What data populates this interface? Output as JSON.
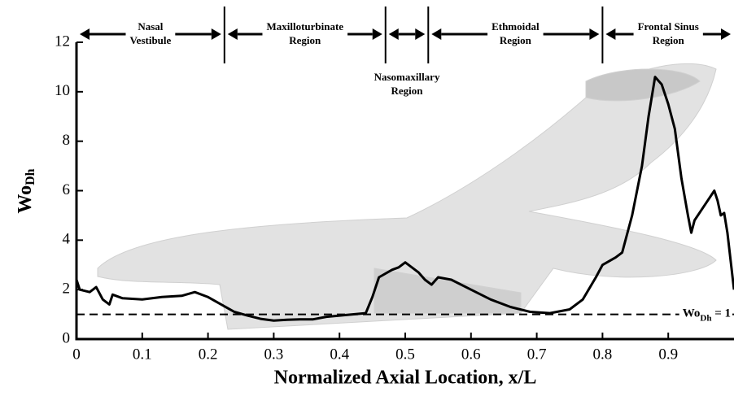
{
  "chart_data": {
    "type": "line",
    "x_label": "Normalized Axial Location, x/L",
    "y_label": [
      "Wo",
      "Dh"
    ],
    "xlim": [
      0,
      1
    ],
    "ylim": [
      0,
      12
    ],
    "xticks": [
      0,
      0.1,
      0.2,
      0.3,
      0.4,
      0.5,
      0.6,
      0.7,
      0.8,
      0.9
    ],
    "yticks": [
      0,
      2,
      4,
      6,
      8,
      10,
      12
    ],
    "color": "#000000",
    "x": [
      0,
      0.005,
      0.02,
      0.03,
      0.04,
      0.05,
      0.055,
      0.07,
      0.1,
      0.13,
      0.16,
      0.18,
      0.2,
      0.22,
      0.24,
      0.26,
      0.28,
      0.3,
      0.32,
      0.34,
      0.36,
      0.38,
      0.4,
      0.42,
      0.44,
      0.45,
      0.46,
      0.48,
      0.49,
      0.5,
      0.51,
      0.52,
      0.53,
      0.54,
      0.55,
      0.57,
      0.6,
      0.63,
      0.66,
      0.69,
      0.72,
      0.75,
      0.77,
      0.79,
      0.8,
      0.82,
      0.83,
      0.845,
      0.86,
      0.87,
      0.88,
      0.89,
      0.9,
      0.91,
      0.92,
      0.93,
      0.935,
      0.94,
      0.95,
      0.96,
      0.97,
      0.975,
      0.98,
      0.985,
      0.99,
      1.0
    ],
    "values": [
      2.4,
      2.0,
      1.9,
      2.1,
      1.6,
      1.4,
      1.8,
      1.65,
      1.6,
      1.7,
      1.75,
      1.9,
      1.7,
      1.4,
      1.1,
      0.95,
      0.82,
      0.75,
      0.78,
      0.8,
      0.8,
      0.9,
      0.95,
      1.0,
      1.05,
      1.7,
      2.5,
      2.8,
      2.9,
      3.1,
      2.9,
      2.7,
      2.4,
      2.2,
      2.5,
      2.4,
      2.0,
      1.6,
      1.3,
      1.1,
      1.05,
      1.2,
      1.6,
      2.5,
      3.0,
      3.3,
      3.5,
      5.0,
      7.0,
      9.0,
      10.6,
      10.3,
      9.5,
      8.5,
      6.5,
      5.0,
      4.3,
      4.8,
      5.2,
      5.6,
      6.0,
      5.6,
      5.0,
      5.1,
      4.3,
      2.0
    ],
    "reference_line": {
      "y": 1,
      "label": [
        "Wo",
        "Dh",
        " = 1"
      ]
    },
    "regions": [
      {
        "label": [
          "Nasal",
          "Vestibule"
        ],
        "start": 0,
        "end": 0.225
      },
      {
        "label": [
          "Maxilloturbinate",
          "Region"
        ],
        "start": 0.225,
        "end": 0.47
      },
      {
        "label": [
          "Nasomaxillary",
          "Region"
        ],
        "start": 0.47,
        "end": 0.535,
        "label_below": true
      },
      {
        "label": [
          "Ethmoidal",
          "Region"
        ],
        "start": 0.535,
        "end": 0.8
      },
      {
        "label": [
          "Frontal Sinus",
          "Region"
        ],
        "start": 0.8,
        "end": 1
      }
    ]
  }
}
